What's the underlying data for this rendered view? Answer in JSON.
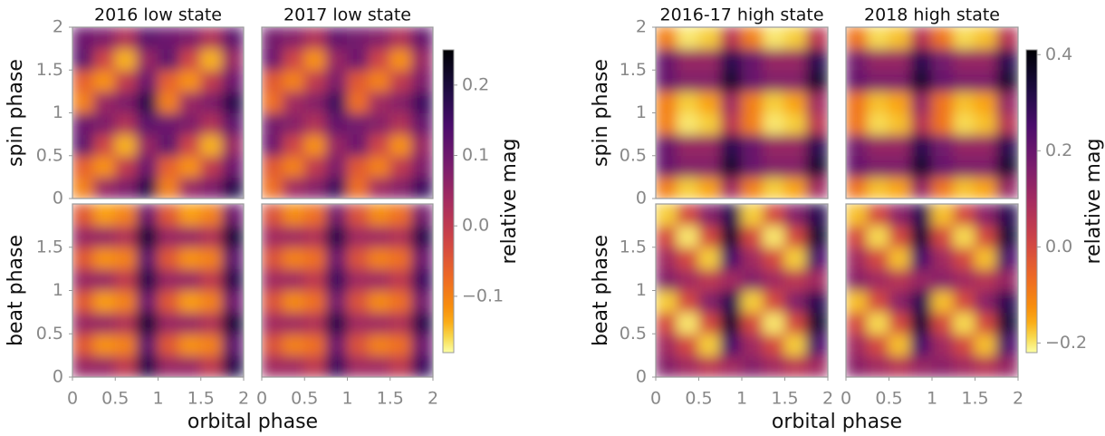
{
  "chart_data": [
    {
      "type": "heatmap",
      "xlabel": "orbital phase",
      "row_labels": [
        "spin phase",
        "beat phase"
      ],
      "colorbar_label": "relative mag",
      "cmap": "inferno_r",
      "xlim": [
        0,
        2
      ],
      "xticks": [
        0,
        0.5,
        1,
        1.5,
        2
      ],
      "ylim": [
        0,
        2
      ],
      "yticks": [
        [
          0,
          0.5,
          1,
          1.5,
          2
        ],
        [
          0,
          0.5,
          1,
          1.5
        ]
      ],
      "clim": [
        -0.18,
        0.25
      ],
      "cticks": [
        {
          "value": -0.1,
          "label": "−0.1"
        },
        {
          "value": 0,
          "label": "0.0"
        },
        0.1,
        0.2
      ],
      "x": [
        0.125,
        0.375,
        0.625,
        0.875,
        1.125,
        1.375,
        1.625,
        1.875
      ],
      "y": [
        0.125,
        0.375,
        0.625,
        0.875,
        1.125,
        1.375,
        1.625,
        1.875
      ],
      "panels": [
        {
          "title": "2016 low state",
          "z": [
            [
              [
                -0.1,
                0.05,
                0.08,
                0.18,
                -0.1,
                0.05,
                0.08,
                0.18
              ],
              [
                -0.06,
                -0.12,
                0.0,
                0.1,
                -0.06,
                -0.12,
                0.0,
                0.1
              ],
              [
                0.12,
                -0.02,
                -0.14,
                0.05,
                0.12,
                -0.02,
                -0.14,
                0.05
              ],
              [
                0.1,
                0.08,
                0.02,
                0.12,
                0.1,
                0.08,
                0.02,
                0.12
              ],
              [
                -0.1,
                0.05,
                0.08,
                0.18,
                -0.1,
                0.05,
                0.08,
                0.18
              ],
              [
                -0.06,
                -0.12,
                0.0,
                0.1,
                -0.06,
                -0.12,
                0.0,
                0.1
              ],
              [
                0.12,
                -0.02,
                -0.14,
                0.05,
                0.12,
                -0.02,
                -0.14,
                0.05
              ],
              [
                0.1,
                0.08,
                0.02,
                0.12,
                0.1,
                0.08,
                0.02,
                0.12
              ]
            ],
            [
              [
                0.05,
                0.05,
                0.0,
                0.18,
                0.05,
                0.05,
                0.0,
                0.18
              ],
              [
                -0.05,
                -0.12,
                -0.1,
                0.12,
                -0.05,
                -0.12,
                -0.1,
                0.12
              ],
              [
                0.05,
                0.05,
                0.02,
                0.2,
                0.05,
                0.05,
                0.02,
                0.2
              ],
              [
                -0.05,
                -0.13,
                -0.1,
                0.1,
                -0.05,
                -0.13,
                -0.1,
                0.1
              ],
              [
                0.05,
                0.05,
                0.0,
                0.18,
                0.05,
                0.05,
                0.0,
                0.18
              ],
              [
                -0.05,
                -0.12,
                -0.1,
                0.12,
                -0.05,
                -0.12,
                -0.1,
                0.12
              ],
              [
                0.05,
                0.05,
                0.02,
                0.2,
                0.05,
                0.05,
                0.02,
                0.2
              ],
              [
                -0.05,
                -0.13,
                -0.1,
                0.1,
                -0.05,
                -0.13,
                -0.1,
                0.1
              ]
            ]
          ]
        },
        {
          "title": "2017 low state",
          "z": [
            [
              [
                -0.08,
                0.04,
                0.07,
                0.16,
                -0.08,
                0.04,
                0.07,
                0.16
              ],
              [
                -0.05,
                -0.1,
                0.0,
                0.08,
                -0.05,
                -0.1,
                0.0,
                0.08
              ],
              [
                0.1,
                -0.02,
                -0.12,
                0.05,
                0.1,
                -0.02,
                -0.12,
                0.05
              ],
              [
                0.09,
                0.07,
                0.02,
                0.11,
                0.09,
                0.07,
                0.02,
                0.11
              ],
              [
                -0.08,
                0.04,
                0.07,
                0.16,
                -0.08,
                0.04,
                0.07,
                0.16
              ],
              [
                -0.05,
                -0.1,
                0.0,
                0.08,
                -0.05,
                -0.1,
                0.0,
                0.08
              ],
              [
                0.1,
                -0.02,
                -0.12,
                0.05,
                0.1,
                -0.02,
                -0.12,
                0.05
              ],
              [
                0.09,
                0.07,
                0.02,
                0.11,
                0.09,
                0.07,
                0.02,
                0.11
              ]
            ],
            [
              [
                0.04,
                0.04,
                0.0,
                0.16,
                0.04,
                0.04,
                0.0,
                0.16
              ],
              [
                -0.04,
                -0.1,
                -0.08,
                0.1,
                -0.04,
                -0.1,
                -0.08,
                0.1
              ],
              [
                0.04,
                0.04,
                0.02,
                0.18,
                0.04,
                0.04,
                0.02,
                0.18
              ],
              [
                -0.04,
                -0.11,
                -0.08,
                0.09,
                -0.04,
                -0.11,
                -0.08,
                0.09
              ],
              [
                0.04,
                0.04,
                0.0,
                0.16,
                0.04,
                0.04,
                0.0,
                0.16
              ],
              [
                -0.04,
                -0.1,
                -0.08,
                0.1,
                -0.04,
                -0.1,
                -0.08,
                0.1
              ],
              [
                0.04,
                0.04,
                0.02,
                0.18,
                0.04,
                0.04,
                0.02,
                0.18
              ],
              [
                -0.04,
                -0.11,
                -0.08,
                0.09,
                -0.04,
                -0.11,
                -0.08,
                0.09
              ]
            ]
          ]
        }
      ]
    },
    {
      "type": "heatmap",
      "xlabel": "orbital phase",
      "row_labels": [
        "spin phase",
        "beat phase"
      ],
      "colorbar_label": "relative mag",
      "cmap": "inferno_r",
      "xlim": [
        0,
        2
      ],
      "xticks": [
        0,
        0.5,
        1,
        1.5,
        2
      ],
      "ylim": [
        0,
        2
      ],
      "yticks": [
        [
          0,
          0.5,
          1,
          1.5,
          2
        ],
        [
          0,
          0.5,
          1,
          1.5
        ]
      ],
      "clim": [
        -0.22,
        0.41
      ],
      "cticks": [
        {
          "value": -0.2,
          "label": "−0.2"
        },
        {
          "value": 0,
          "label": "0.0"
        },
        0.2,
        0.4
      ],
      "x": [
        0.125,
        0.375,
        0.625,
        0.875,
        1.125,
        1.375,
        1.625,
        1.875
      ],
      "y": [
        0.125,
        0.375,
        0.625,
        0.875,
        1.125,
        1.375,
        1.625,
        1.875
      ],
      "panels": [
        {
          "title": "2016-17 high state",
          "z": [
            [
              [
                -0.1,
                -0.18,
                -0.15,
                0.1,
                -0.1,
                -0.18,
                -0.15,
                0.1
              ],
              [
                0.2,
                0.15,
                0.15,
                0.35,
                0.2,
                0.15,
                0.15,
                0.35
              ],
              [
                0.2,
                0.12,
                0.12,
                0.3,
                0.2,
                0.12,
                0.12,
                0.3
              ],
              [
                -0.1,
                -0.2,
                -0.18,
                0.05,
                -0.1,
                -0.2,
                -0.18,
                0.05
              ],
              [
                -0.1,
                -0.18,
                -0.15,
                0.1,
                -0.1,
                -0.18,
                -0.15,
                0.1
              ],
              [
                0.2,
                0.15,
                0.15,
                0.35,
                0.2,
                0.15,
                0.15,
                0.35
              ],
              [
                0.2,
                0.12,
                0.12,
                0.3,
                0.2,
                0.12,
                0.12,
                0.3
              ],
              [
                -0.1,
                -0.2,
                -0.18,
                0.05,
                -0.1,
                -0.2,
                -0.18,
                0.05
              ]
            ],
            [
              [
                0.15,
                0.1,
                0.05,
                0.1,
                0.15,
                0.1,
                0.05,
                0.1
              ],
              [
                0.1,
                0.0,
                -0.18,
                0.25,
                0.1,
                0.0,
                -0.18,
                0.25
              ],
              [
                0.0,
                -0.2,
                0.0,
                0.35,
                0.0,
                -0.2,
                0.0,
                0.35
              ],
              [
                -0.18,
                0.0,
                0.15,
                0.3,
                -0.18,
                0.0,
                0.15,
                0.3
              ],
              [
                0.15,
                0.1,
                0.05,
                0.1,
                0.15,
                0.1,
                0.05,
                0.1
              ],
              [
                0.1,
                0.0,
                -0.18,
                0.25,
                0.1,
                0.0,
                -0.18,
                0.25
              ],
              [
                0.0,
                -0.2,
                0.0,
                0.35,
                0.0,
                -0.2,
                0.0,
                0.35
              ],
              [
                -0.18,
                0.0,
                0.15,
                0.3,
                -0.18,
                0.0,
                0.15,
                0.3
              ]
            ]
          ]
        },
        {
          "title": "2018 high state",
          "z": [
            [
              [
                -0.08,
                -0.17,
                -0.15,
                0.12,
                -0.08,
                -0.17,
                -0.15,
                0.12
              ],
              [
                0.2,
                0.16,
                0.16,
                0.35,
                0.2,
                0.16,
                0.16,
                0.35
              ],
              [
                0.18,
                0.12,
                0.12,
                0.3,
                0.18,
                0.12,
                0.12,
                0.3
              ],
              [
                -0.08,
                -0.19,
                -0.17,
                0.06,
                -0.08,
                -0.19,
                -0.17,
                0.06
              ],
              [
                -0.08,
                -0.17,
                -0.15,
                0.12,
                -0.08,
                -0.17,
                -0.15,
                0.12
              ],
              [
                0.2,
                0.16,
                0.16,
                0.35,
                0.2,
                0.16,
                0.16,
                0.35
              ],
              [
                0.18,
                0.12,
                0.12,
                0.3,
                0.18,
                0.12,
                0.12,
                0.3
              ],
              [
                -0.08,
                -0.19,
                -0.17,
                0.06,
                -0.08,
                -0.19,
                -0.17,
                0.06
              ]
            ],
            [
              [
                0.14,
                0.1,
                0.06,
                0.12,
                0.14,
                0.1,
                0.06,
                0.12
              ],
              [
                0.1,
                0.0,
                -0.17,
                0.25,
                0.1,
                0.0,
                -0.17,
                0.25
              ],
              [
                0.0,
                -0.19,
                0.0,
                0.34,
                0.0,
                -0.19,
                0.0,
                0.34
              ],
              [
                -0.17,
                0.0,
                0.14,
                0.3,
                -0.17,
                0.0,
                0.14,
                0.3
              ],
              [
                0.14,
                0.1,
                0.06,
                0.12,
                0.14,
                0.1,
                0.06,
                0.12
              ],
              [
                0.1,
                0.0,
                -0.17,
                0.25,
                0.1,
                0.0,
                -0.17,
                0.25
              ],
              [
                0.0,
                -0.19,
                0.0,
                0.34,
                0.0,
                -0.19,
                0.0,
                0.34
              ],
              [
                -0.17,
                0.0,
                0.14,
                0.3,
                -0.17,
                0.0,
                0.14,
                0.3
              ]
            ]
          ]
        }
      ]
    }
  ]
}
